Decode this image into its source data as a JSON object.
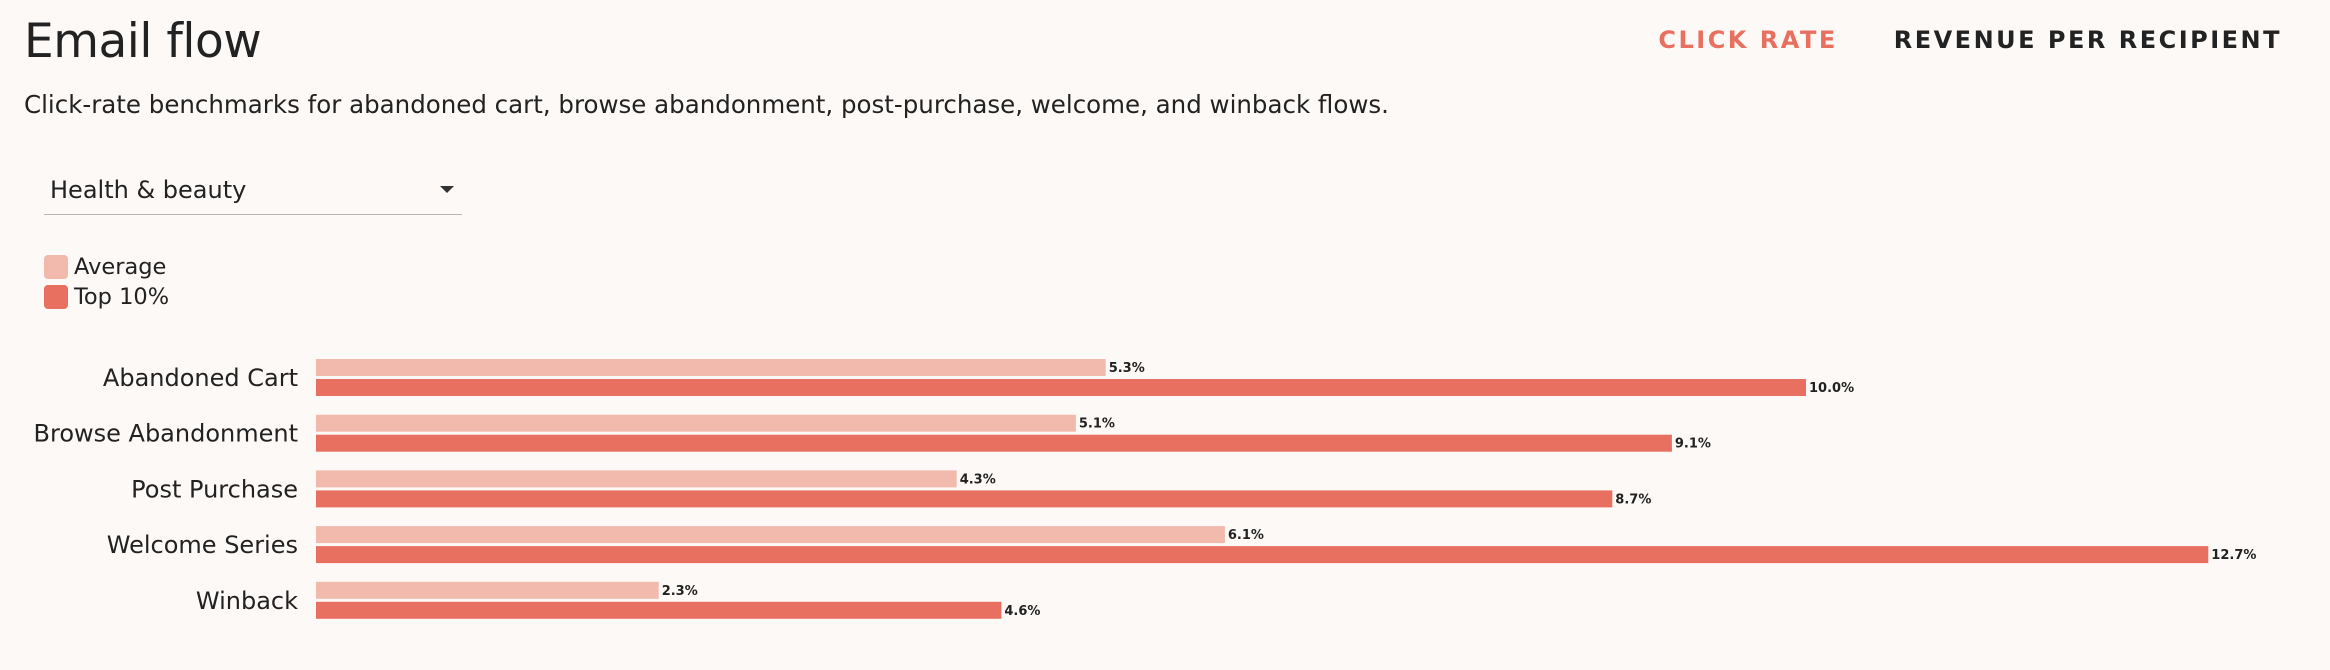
{
  "header": {
    "title": "Email flow",
    "subtitle": "Click-rate benchmarks for abandoned cart, browse abandonment, post-purchase, welcome, and winback flows."
  },
  "tabs": [
    {
      "label": "CLICK RATE",
      "active": true
    },
    {
      "label": "REVENUE PER RECIPIENT",
      "active": false
    }
  ],
  "filter": {
    "selected": "Health & beauty",
    "icon": "chevron-down-icon"
  },
  "colors": {
    "average": "#f2b9ad",
    "top": "#e87060",
    "accent": "#e87060",
    "background": "#fdf9f6"
  },
  "chart_data": {
    "type": "bar",
    "orientation": "horizontal",
    "categories": [
      "Abandoned Cart",
      "Browse Abandonment",
      "Post Purchase",
      "Welcome Series",
      "Winback"
    ],
    "series": [
      {
        "name": "Average",
        "values": [
          5.3,
          5.1,
          4.3,
          6.1,
          2.3
        ],
        "labels": [
          "5.3%",
          "5.1%",
          "4.3%",
          "6.1%",
          "2.3%"
        ]
      },
      {
        "name": "Top 10%",
        "values": [
          10.0,
          9.1,
          8.7,
          12.7,
          4.6
        ],
        "labels": [
          "10.0%",
          "9.1%",
          "8.7%",
          "12.7%",
          "4.6%"
        ]
      }
    ],
    "unit": "%",
    "legend": "top-left",
    "grid": false,
    "title": "",
    "xlabel": "",
    "ylabel": ""
  }
}
